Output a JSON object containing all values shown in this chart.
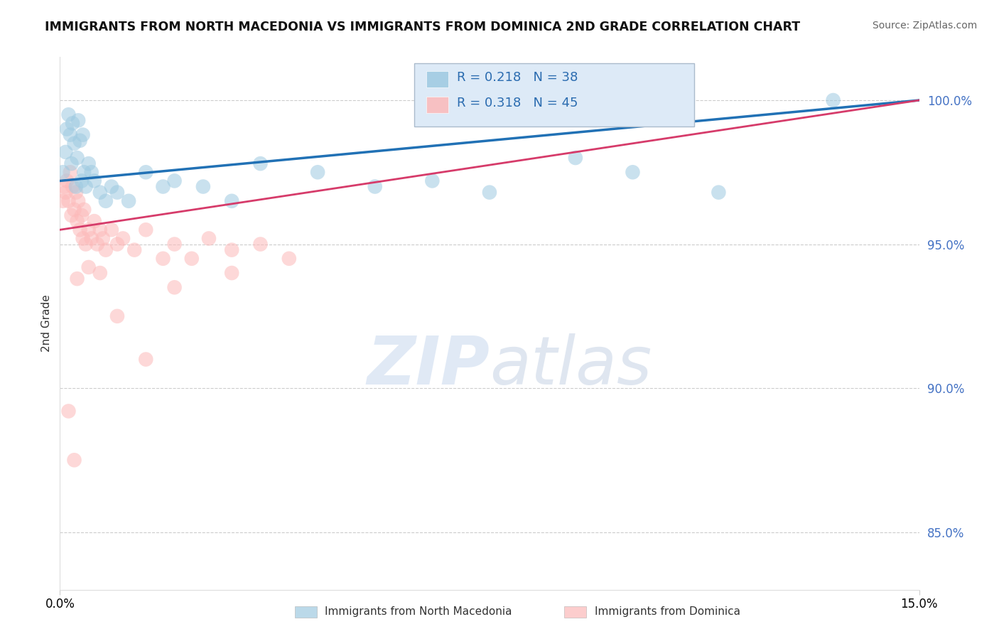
{
  "title": "IMMIGRANTS FROM NORTH MACEDONIA VS IMMIGRANTS FROM DOMINICA 2ND GRADE CORRELATION CHART",
  "source": "Source: ZipAtlas.com",
  "ylabel": "2nd Grade",
  "xlim": [
    0.0,
    15.0
  ],
  "ylim": [
    83.0,
    101.5
  ],
  "yticks": [
    85.0,
    90.0,
    95.0,
    100.0
  ],
  "ytick_labels": [
    "85.0%",
    "90.0%",
    "95.0%",
    "100.0%"
  ],
  "xticks": [
    0.0,
    15.0
  ],
  "xtick_labels": [
    "0.0%",
    "15.0%"
  ],
  "blue_R": 0.218,
  "blue_N": 38,
  "pink_R": 0.318,
  "pink_N": 45,
  "blue_color": "#9ecae1",
  "pink_color": "#fcb9b9",
  "blue_line_color": "#2171b5",
  "pink_line_color": "#d63b6a",
  "legend_label_blue": "Immigrants from North Macedonia",
  "legend_label_pink": "Immigrants from Dominica",
  "blue_scatter_x": [
    0.05,
    0.1,
    0.12,
    0.15,
    0.18,
    0.2,
    0.22,
    0.25,
    0.28,
    0.3,
    0.32,
    0.35,
    0.38,
    0.4,
    0.42,
    0.45,
    0.5,
    0.55,
    0.6,
    0.7,
    0.8,
    0.9,
    1.0,
    1.2,
    1.5,
    1.8,
    2.0,
    2.5,
    3.0,
    3.5,
    4.5,
    5.5,
    6.5,
    7.5,
    9.0,
    10.0,
    11.5,
    13.5
  ],
  "blue_scatter_y": [
    97.5,
    98.2,
    99.0,
    99.5,
    98.8,
    97.8,
    99.2,
    98.5,
    97.0,
    98.0,
    99.3,
    98.6,
    97.2,
    98.8,
    97.5,
    97.0,
    97.8,
    97.5,
    97.2,
    96.8,
    96.5,
    97.0,
    96.8,
    96.5,
    97.5,
    97.0,
    97.2,
    97.0,
    96.5,
    97.8,
    97.5,
    97.0,
    97.2,
    96.8,
    98.0,
    97.5,
    96.8,
    100.0
  ],
  "pink_scatter_x": [
    0.05,
    0.08,
    0.1,
    0.12,
    0.15,
    0.18,
    0.2,
    0.22,
    0.25,
    0.28,
    0.3,
    0.32,
    0.35,
    0.38,
    0.4,
    0.42,
    0.45,
    0.5,
    0.55,
    0.6,
    0.65,
    0.7,
    0.75,
    0.8,
    0.9,
    1.0,
    1.1,
    1.3,
    1.5,
    1.8,
    2.0,
    2.3,
    2.6,
    3.0,
    3.5,
    4.0,
    0.3,
    0.5,
    0.7,
    1.0,
    1.5,
    2.0,
    3.0,
    0.15,
    0.25
  ],
  "pink_scatter_y": [
    96.5,
    97.0,
    96.8,
    97.2,
    96.5,
    97.5,
    96.0,
    97.0,
    96.2,
    96.8,
    95.8,
    96.5,
    95.5,
    96.0,
    95.2,
    96.2,
    95.0,
    95.5,
    95.2,
    95.8,
    95.0,
    95.5,
    95.2,
    94.8,
    95.5,
    95.0,
    95.2,
    94.8,
    95.5,
    94.5,
    95.0,
    94.5,
    95.2,
    94.8,
    95.0,
    94.5,
    93.8,
    94.2,
    94.0,
    92.5,
    91.0,
    93.5,
    94.0,
    89.2,
    87.5
  ]
}
